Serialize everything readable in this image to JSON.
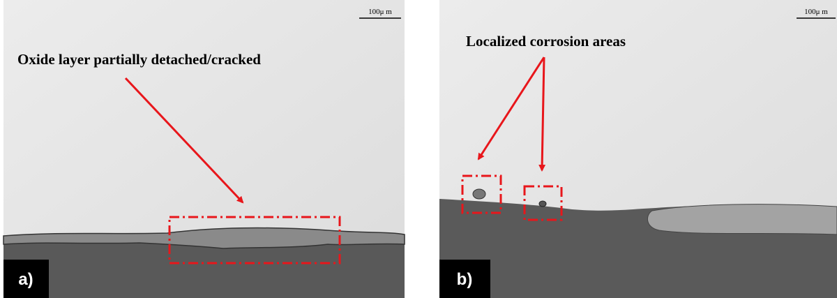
{
  "panels": [
    {
      "label": "a)",
      "scale": "100μ m",
      "annotation": "Oxide layer partially detached/cracked"
    },
    {
      "label": "b)",
      "scale": "100μ m",
      "annotation": "Localized corrosion areas"
    }
  ]
}
